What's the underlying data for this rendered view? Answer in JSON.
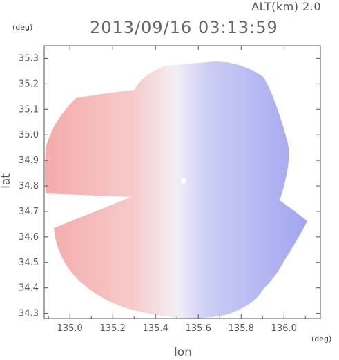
{
  "header": {
    "altitude": "ALT(km) 2.0",
    "timestamp": "2013/09/16 03:13:59",
    "y_unit": "(deg)",
    "x_unit": "(deg)"
  },
  "chart_data": {
    "type": "heatmap",
    "title": "2013/09/16 03:13:59",
    "xlabel": "lon",
    "ylabel": "lat",
    "xlim": [
      134.88,
      136.17
    ],
    "ylim": [
      34.28,
      35.35
    ],
    "x_ticks": [
      135.0,
      135.2,
      135.4,
      135.6,
      135.8,
      136.0
    ],
    "x_tick_labels": [
      "135.0",
      "135.2",
      "135.4",
      "135.6",
      "135.8",
      "136.0"
    ],
    "y_ticks": [
      34.3,
      34.4,
      34.5,
      34.6,
      34.7,
      34.8,
      34.9,
      35.0,
      35.1,
      35.2,
      35.3
    ],
    "y_tick_labels": [
      "34.3",
      "34.4",
      "34.5",
      "34.6",
      "34.7",
      "34.8",
      "34.9",
      "35.0",
      "35.1",
      "35.2",
      "35.3"
    ],
    "radar_center": {
      "lon": 135.53,
      "lat": 34.82
    },
    "colors": {
      "positive": "#f4a6a6",
      "negative": "#9a9ef2",
      "zero": "#f3f3fb"
    },
    "grid": false
  }
}
